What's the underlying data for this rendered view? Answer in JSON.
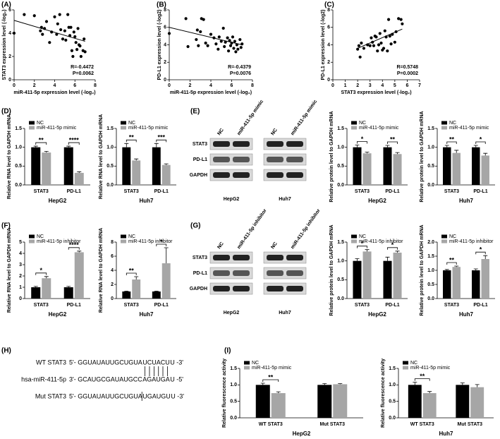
{
  "panel_labels": [
    "(A)",
    "(B)",
    "(C)",
    "(D)",
    "(E)",
    "(F)",
    "(G)",
    "(H)",
    "(I)"
  ],
  "chart_data": [
    {
      "type": "scatter",
      "xlabel": "miR-411-5p expression level (-log₂)",
      "ylabel": "STAT3 expression level (-log₂)",
      "xlim": [
        0,
        8
      ],
      "xticks": [
        0,
        2,
        4,
        6,
        8
      ],
      "ylim": [
        0,
        6
      ],
      "yticks": [
        0,
        2,
        4,
        6
      ],
      "color": "#000000",
      "x": [
        0,
        1,
        2,
        2.6,
        2.7,
        2.8,
        3,
        3.2,
        3.5,
        3.7,
        4,
        4.2,
        4.3,
        4.5,
        4.6,
        4.8,
        5,
        5.1,
        5.3,
        5.4,
        5.5,
        5.6,
        5.7,
        5.8,
        5.9,
        6,
        6.1,
        6.2,
        6.3,
        6.4,
        6.5,
        6.6,
        6.8,
        6.9,
        7
      ],
      "values": [
        4,
        5.6,
        5.5,
        4.2,
        4.5,
        3.9,
        4.4,
        5,
        3.2,
        4.1,
        5.4,
        3.9,
        4.8,
        5.6,
        4.3,
        3.5,
        4.2,
        3.4,
        5.6,
        4.5,
        3.8,
        4.5,
        2.5,
        2,
        4.1,
        3.7,
        3.2,
        2.6,
        4.4,
        3,
        2.9,
        2,
        2.5,
        3.5,
        2.4
      ],
      "fit": {
        "x": [
          0,
          7
        ],
        "y": [
          5.1,
          3.3
        ]
      },
      "annotations": [
        "R=-0.4472",
        "P=0.0062"
      ]
    },
    {
      "type": "scatter",
      "xlabel": "miR-411-5p expression level (-log₂)",
      "ylabel": "PD-L1 expression level (-log2)",
      "xlim": [
        0,
        8
      ],
      "xticks": [
        0,
        2,
        4,
        6,
        8
      ],
      "ylim": [
        0,
        8
      ],
      "yticks": [
        0,
        2,
        4,
        6,
        8
      ],
      "color": "#000000",
      "x": [
        0,
        1.6,
        1.8,
        2.6,
        2.7,
        2.8,
        3,
        3.1,
        3.3,
        3.5,
        3.7,
        4,
        4.3,
        4.5,
        4.7,
        4.8,
        5,
        5.2,
        5.3,
        5.4,
        5.6,
        5.7,
        5.8,
        5.9,
        6,
        6.1,
        6.2,
        6.3,
        6.4,
        6.5,
        6.6,
        6.8,
        6.9,
        7
      ],
      "values": [
        5.3,
        7,
        3.8,
        4.6,
        5.7,
        3.9,
        5.5,
        7,
        6.9,
        4.2,
        3.9,
        5.2,
        4.8,
        4.1,
        3.5,
        4.9,
        4.4,
        5.9,
        3.8,
        4.3,
        4.8,
        3.3,
        4.5,
        3.9,
        4.2,
        4.9,
        3.6,
        4.4,
        3.2,
        4,
        3.5,
        4.6,
        3.7,
        4.1
      ],
      "fit": {
        "x": [
          0,
          7
        ],
        "y": [
          6,
          4
        ]
      },
      "annotations": [
        "R=-0.4379",
        "P=0.0076"
      ]
    },
    {
      "type": "scatter",
      "xlabel": "STAT3 expression level (-log₂)",
      "ylabel": "PD-L1 expression level (-log2)",
      "xlim": [
        0,
        7
      ],
      "xticks": [
        0,
        1,
        2,
        3,
        4,
        5,
        6,
        7
      ],
      "ylim": [
        0,
        8
      ],
      "yticks": [
        0,
        2,
        4,
        6,
        8
      ],
      "color": "#000000",
      "x": [
        2,
        2.1,
        2.2,
        2.3,
        2.5,
        2.8,
        3,
        3.1,
        3.2,
        3.3,
        3.4,
        3.5,
        3.6,
        3.7,
        3.8,
        3.9,
        4,
        4.1,
        4.2,
        4.3,
        4.4,
        4.5,
        4.6,
        4.7,
        4.8,
        5,
        5.1,
        5.3,
        5.5,
        5.6
      ],
      "values": [
        3.5,
        3.9,
        2.6,
        4.2,
        3.6,
        4,
        3.9,
        4.8,
        4.3,
        3.9,
        5,
        4.9,
        3.3,
        4,
        5.3,
        4.2,
        3.4,
        3.6,
        5.6,
        4.9,
        3.3,
        6.9,
        5,
        4.1,
        5.2,
        4.3,
        5.5,
        7,
        6.9,
        6.4
      ],
      "fit": {
        "x": [
          2,
          5.6
        ],
        "y": [
          3.6,
          5.8
        ]
      },
      "annotations": [
        "R=0.5748",
        "P=0.0002"
      ]
    },
    {
      "type": "bar",
      "title": "HepG2",
      "ylabel": "Relative RNA level to GAPDH mRNA",
      "categories": [
        "STAT3",
        "PD-L1"
      ],
      "series": [
        {
          "name": "NC",
          "color": "#000000",
          "values": [
            1,
            1
          ],
          "errors": [
            0.03,
            0.03
          ]
        },
        {
          "name": "miR-411-5p mimic",
          "color": "#a6a6a6",
          "values": [
            0.86,
            0.32
          ],
          "errors": [
            0.03,
            0.03
          ]
        }
      ],
      "ylim": [
        0,
        1.5
      ],
      "yticks": [
        {
          "value": 0,
          "label": "0.0"
        },
        0.5,
        {
          "value": 1,
          "label": "1.0"
        },
        1.5
      ],
      "significance": [
        "**",
        "****"
      ]
    },
    {
      "type": "bar",
      "title": "Huh7",
      "ylabel": "Relative RNA level to GAPDH mRNA",
      "categories": [
        "STAT3",
        "PD-L1"
      ],
      "series": [
        {
          "name": "NC",
          "color": "#000000",
          "values": [
            1,
            1
          ],
          "errors": [
            0.1,
            0.1
          ]
        },
        {
          "name": "miR-411-5p mimic",
          "color": "#a6a6a6",
          "values": [
            0.65,
            0.53
          ],
          "errors": [
            0.04,
            0.03
          ]
        }
      ],
      "ylim": [
        0,
        1.5
      ],
      "yticks": [
        {
          "value": 0,
          "label": "0.0"
        },
        0.5,
        {
          "value": 1,
          "label": "1.0"
        },
        1.5
      ],
      "significance": [
        "**",
        "***"
      ]
    },
    {
      "type": "bar",
      "title": "HepG2",
      "ylabel": "Relative protein level to GAPDH mRNA",
      "categories": [
        "STAT3",
        "PD-L1"
      ],
      "series": [
        {
          "name": "NC",
          "color": "#000000",
          "values": [
            1,
            1
          ],
          "errors": [
            0.06,
            0.05
          ]
        },
        {
          "name": "miR-411-5p mimic",
          "color": "#a6a6a6",
          "values": [
            0.84,
            0.82
          ],
          "errors": [
            0.03,
            0.04
          ]
        }
      ],
      "ylim": [
        0,
        1.5
      ],
      "yticks": [
        {
          "value": 0,
          "label": "0.0"
        },
        0.5,
        {
          "value": 1,
          "label": "1.0"
        },
        1.5
      ],
      "significance": [
        "*",
        "**"
      ]
    },
    {
      "type": "bar",
      "title": "Huh7",
      "ylabel": "Relative protein level to GAPDH mRNA",
      "categories": [
        "STAT3",
        "PD-L1"
      ],
      "series": [
        {
          "name": "NC",
          "color": "#000000",
          "values": [
            1,
            1
          ],
          "errors": [
            0.05,
            0.05
          ]
        },
        {
          "name": "miR-411-5p mimic",
          "color": "#a6a6a6",
          "values": [
            0.85,
            0.78
          ],
          "errors": [
            0.07,
            0.06
          ]
        }
      ],
      "ylim": [
        0,
        1.5
      ],
      "yticks": [
        {
          "value": 0,
          "label": "0.0"
        },
        0.5,
        {
          "value": 1,
          "label": "1.0"
        },
        1.5
      ],
      "significance": [
        "**",
        "*"
      ]
    },
    {
      "type": "bar",
      "title": "HepG2",
      "ylabel": "Relative RNA level to GAPDH mRNA",
      "categories": [
        "STAT3",
        "PD-L1"
      ],
      "series": [
        {
          "name": "NC",
          "color": "#000000",
          "values": [
            1,
            1
          ],
          "errors": [
            0.08,
            0.08
          ]
        },
        {
          "name": "miR-411-5p inhibitor",
          "color": "#a6a6a6",
          "values": [
            1.8,
            4.1
          ],
          "errors": [
            0.15,
            0.1
          ]
        }
      ],
      "ylim": [
        0,
        5
      ],
      "yticks": [
        0,
        1,
        2,
        3,
        4,
        5
      ],
      "significance": [
        "*",
        "****"
      ]
    },
    {
      "type": "bar",
      "title": "Huh7",
      "ylabel": "Relative RNA level to GAPDH mRNA",
      "categories": [
        "STAT3",
        "PD-L1"
      ],
      "series": [
        {
          "name": "NC",
          "color": "#000000",
          "values": [
            1,
            1
          ],
          "errors": [
            0.05,
            0.05
          ]
        },
        {
          "name": "miR-411-5p inhibitor",
          "color": "#a6a6a6",
          "values": [
            2.7,
            5
          ],
          "errors": [
            0.4,
            2.2
          ]
        }
      ],
      "ylim": [
        0,
        8
      ],
      "yticks": [
        0,
        2,
        4,
        6,
        8
      ],
      "significance": [
        "**",
        "*"
      ]
    },
    {
      "type": "bar",
      "title": "HepG2",
      "ylabel": "Relative protein level to GAPDH mRNA",
      "categories": [
        "STAT3",
        "PD-L1"
      ],
      "series": [
        {
          "name": "NC",
          "color": "#000000",
          "values": [
            1,
            1
          ],
          "errors": [
            0.06,
            0.1
          ]
        },
        {
          "name": "miR-411-5p inhibitor",
          "color": "#a6a6a6",
          "values": [
            1.25,
            1.22
          ],
          "errors": [
            0.05,
            0.04
          ]
        }
      ],
      "ylim": [
        0,
        1.5
      ],
      "yticks": [
        {
          "value": 0,
          "label": "0.0"
        },
        0.5,
        {
          "value": 1,
          "label": "1.0"
        },
        1.5
      ],
      "significance": [
        "*",
        "*"
      ]
    },
    {
      "type": "bar",
      "title": "Huh7",
      "ylabel": "Relative protein level to GAPDH mRNA",
      "categories": [
        "STAT3",
        "PD-L1"
      ],
      "series": [
        {
          "name": "NC",
          "color": "#000000",
          "values": [
            1,
            1
          ],
          "errors": [
            0.03,
            0.05
          ]
        },
        {
          "name": "miR-411-5p inhibitor",
          "color": "#a6a6a6",
          "values": [
            1.12,
            1.4
          ],
          "errors": [
            0.03,
            0.12
          ]
        }
      ],
      "ylim": [
        0,
        2
      ],
      "yticks": [
        {
          "value": 0,
          "label": "0.0"
        },
        0.5,
        {
          "value": 1,
          "label": "1.0"
        },
        1.5,
        {
          "value": 2,
          "label": "2.0"
        }
      ],
      "significance": [
        "**",
        "*"
      ]
    },
    {
      "type": "bar",
      "title": "HepG2",
      "ylabel": "Relative fluorescence activity",
      "categories": [
        "WT STAT3",
        "Mut STAT3"
      ],
      "series": [
        {
          "name": "NC",
          "color": "#000000",
          "values": [
            1,
            1
          ],
          "errors": [
            0.05,
            0.04
          ]
        },
        {
          "name": "miR-411-5p mimic",
          "color": "#a6a6a6",
          "values": [
            0.75,
            1.02
          ],
          "errors": [
            0.04,
            0.02
          ]
        }
      ],
      "ylim": [
        0,
        1.5
      ],
      "yticks": [
        {
          "value": 0,
          "label": "0.0"
        },
        0.5,
        {
          "value": 1,
          "label": "1.0"
        },
        1.5
      ],
      "significance": [
        "**",
        null
      ]
    },
    {
      "type": "bar",
      "title": "Huh7",
      "ylabel": "Relative fluorescence activity",
      "categories": [
        "WT STAT3",
        "Mut STAT3"
      ],
      "series": [
        {
          "name": "NC",
          "color": "#000000",
          "values": [
            1,
            1
          ],
          "errors": [
            0.08,
            0.06
          ]
        },
        {
          "name": "miR-411-5p mimic",
          "color": "#a6a6a6",
          "values": [
            0.75,
            0.93
          ],
          "errors": [
            0.05,
            0.08
          ]
        }
      ],
      "ylim": [
        0,
        1.5
      ],
      "yticks": [
        {
          "value": 0,
          "label": "0.0"
        },
        0.5,
        {
          "value": 1,
          "label": "1.0"
        },
        1.5
      ],
      "significance": [
        "**",
        null
      ]
    }
  ],
  "blots": [
    {
      "rows": [
        "STAT3",
        "PD-L1",
        "GAPDH"
      ],
      "groups": [
        {
          "name": "HepG2",
          "lanes": [
            "NC",
            "miR-411-5p mimic"
          ]
        },
        {
          "name": "Huh7",
          "lanes": [
            "NC",
            "miR-411-5p mimic"
          ]
        }
      ]
    },
    {
      "rows": [
        "STAT3",
        "PD-L1",
        "GAPDH"
      ],
      "groups": [
        {
          "name": "HepG2",
          "lanes": [
            "NC",
            "miR-411-5p inhibitor"
          ]
        },
        {
          "name": "Huh7",
          "lanes": [
            "NC",
            "miR-411-5p inhibitor"
          ]
        }
      ]
    }
  ],
  "sequences": {
    "highlight_color": "#e8281e",
    "lines": [
      {
        "name": "WT STAT3",
        "parts": [
          "5'- GGUAUAUUGCUGUA",
          "UCUACU",
          "U -3'"
        ]
      },
      {
        "name": "hsa-miR-411-5p",
        "parts": [
          "3'- GCAUGCGAUAUGCC",
          "AGAUGA",
          "U -5'"
        ]
      },
      {
        "name": "Mut STAT3",
        "parts": [
          "5'- GGUAUAUUGCUGUA",
          "UGAUGU",
          "U -3'"
        ]
      }
    ]
  }
}
